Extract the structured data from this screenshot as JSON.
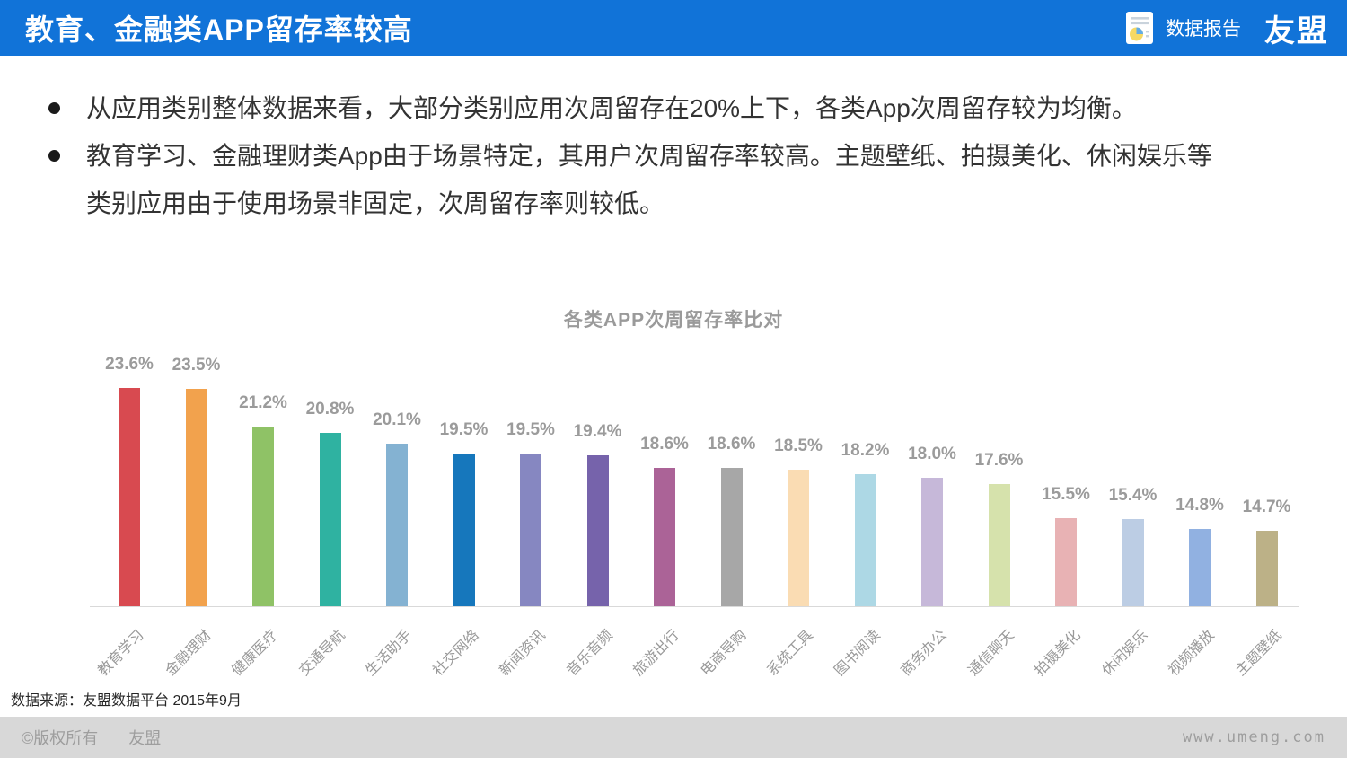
{
  "header": {
    "title": "教育、金融类APP留存率较高",
    "report_label": "数据报告",
    "logo": "友盟",
    "bg_color": "#1173d8"
  },
  "bullets": {
    "items": [
      {
        "lines": [
          "从应用类别整体数据来看，大部分类别应用次周留存在20%上下，各类App次周留存较为均衡。"
        ]
      },
      {
        "lines": [
          "教育学习、金融理财类App由于场景特定，其用户次周留存率较高。主题壁纸、拍摄美化、休闲娱乐等",
          "类别应用由于使用场景非固定，次周留存率则较低。"
        ]
      }
    ]
  },
  "chart_data": {
    "type": "bar",
    "title": "各类APP次周留存率比对",
    "xlabel": "",
    "ylabel": "",
    "value_suffix": "%",
    "ylim": [
      10,
      25
    ],
    "grid": false,
    "legend": null,
    "data_labels": "outside-end",
    "categories": [
      "教育学习",
      "金融理财",
      "健康医疗",
      "交通导航",
      "生活助手",
      "社交网络",
      "新闻资讯",
      "音乐音频",
      "旅游出行",
      "电商导购",
      "系统工具",
      "图书阅读",
      "商务办公",
      "通信聊天",
      "拍摄美化",
      "休闲娱乐",
      "视频播放",
      "主题壁纸"
    ],
    "values": [
      23.6,
      23.5,
      21.2,
      20.8,
      20.1,
      19.5,
      19.5,
      19.4,
      18.6,
      18.6,
      18.5,
      18.2,
      18.0,
      17.6,
      15.5,
      15.4,
      14.8,
      14.7
    ],
    "colors": [
      "#d84a50",
      "#f2a24d",
      "#8fc266",
      "#2fb2a1",
      "#84b2d2",
      "#1677bc",
      "#8687c1",
      "#7663ab",
      "#ab6397",
      "#a7a7a7",
      "#fadcb3",
      "#add8e5",
      "#c6b8d9",
      "#d6e2ac",
      "#e8b2b4",
      "#bccde4",
      "#91b1e1",
      "#bcb187"
    ],
    "label_color": "#9b9b9b",
    "axis_color": "#d9d9d9"
  },
  "source_note": "数据来源：友盟数据平台 2015年9月",
  "footer": {
    "copyright": "©版权所有",
    "brand": "友盟",
    "website": "www.umeng.com"
  }
}
